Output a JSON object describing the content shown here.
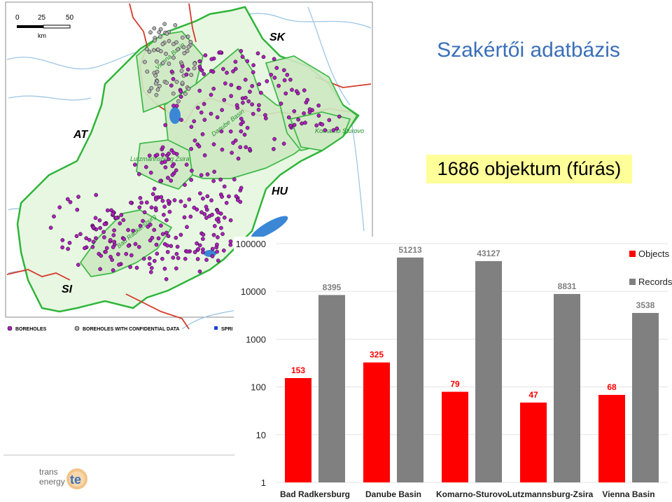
{
  "title": "Szakértői adatbázis",
  "count_label": "1686 objektum (fúrás)",
  "map": {
    "scale_ticks": [
      "0",
      "25",
      "50"
    ],
    "scale_unit": "km",
    "countries": {
      "sk": "SK",
      "at": "AT",
      "hu": "HU",
      "si": "SI"
    },
    "basins": {
      "vienna": "Vienna Basin",
      "danube": "Danube Basin",
      "komarno": "Komarno Sturovo",
      "lutz": "Lutzmannsburg Zsira",
      "bad": "Bad Radkersburg"
    },
    "legend": {
      "boreholes": "BOREHOLES",
      "confidential": "BOREHOLES WITH CONFIDENTIAL DATA",
      "springs": "SPRI"
    }
  },
  "chart_data": {
    "type": "bar",
    "yscale": "log",
    "ylim": [
      1,
      100000
    ],
    "yticks": [
      "1",
      "10",
      "100",
      "1000",
      "10000",
      "100000"
    ],
    "categories": [
      "Bad Radkersburg",
      "Danube Basin",
      "Komarno-Sturovo",
      "Lutzmannsburg-Zsira",
      "Vienna Basin"
    ],
    "series": [
      {
        "name": "Objects",
        "color": "#ff0000",
        "values": [
          153,
          325,
          79,
          47,
          68
        ]
      },
      {
        "name": "Records",
        "color": "#808080",
        "values": [
          8395,
          51213,
          43127,
          8831,
          3538
        ]
      }
    ],
    "legend_position": "top-right"
  },
  "logo": {
    "line1": "trans",
    "line2": "energy",
    "mark": "te"
  }
}
